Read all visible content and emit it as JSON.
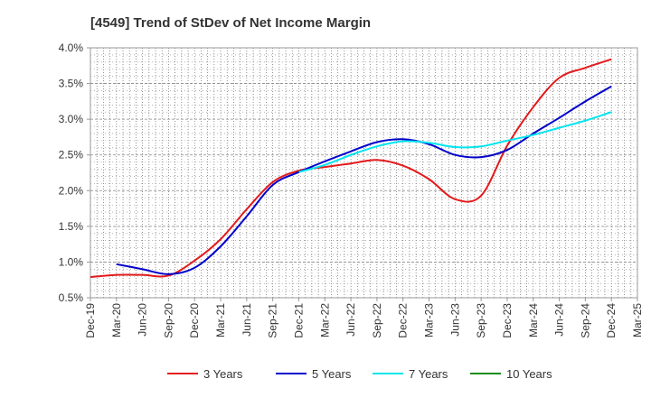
{
  "chart_data": {
    "type": "line",
    "title": "[4549]  Trend of StDev of Net Income Margin",
    "xlabel": "",
    "ylabel": "",
    "ylim": [
      0.5,
      4.0
    ],
    "yticks": [
      "0.5%",
      "1.0%",
      "1.5%",
      "2.0%",
      "2.5%",
      "3.0%",
      "3.5%",
      "4.0%"
    ],
    "ytick_values": [
      0.5,
      1.0,
      1.5,
      2.0,
      2.5,
      3.0,
      3.5,
      4.0
    ],
    "categories": [
      "Dec-19",
      "Mar-20",
      "Jun-20",
      "Sep-20",
      "Dec-20",
      "Mar-21",
      "Jun-21",
      "Sep-21",
      "Dec-21",
      "Mar-22",
      "Jun-22",
      "Sep-22",
      "Dec-22",
      "Mar-23",
      "Jun-23",
      "Sep-23",
      "Dec-23",
      "Mar-24",
      "Jun-24",
      "Sep-24",
      "Dec-24",
      "Mar-25"
    ],
    "grid": true,
    "legend_position": "bottom",
    "series": [
      {
        "name": "3 Years",
        "color": "#e31a1c",
        "values": [
          0.79,
          0.82,
          0.82,
          0.81,
          1.02,
          1.32,
          1.74,
          2.12,
          2.28,
          2.33,
          2.38,
          2.43,
          2.35,
          2.16,
          1.88,
          1.93,
          2.63,
          3.17,
          3.58,
          3.72,
          3.84,
          null
        ]
      },
      {
        "name": "5 Years",
        "color": "#0000cc",
        "values": [
          null,
          0.97,
          0.9,
          0.83,
          0.92,
          1.22,
          1.64,
          2.08,
          2.26,
          2.41,
          2.55,
          2.68,
          2.72,
          2.65,
          2.5,
          2.47,
          2.57,
          2.8,
          3.02,
          3.25,
          3.46,
          null
        ]
      },
      {
        "name": "7 Years",
        "color": "#00e5ee",
        "values": [
          null,
          null,
          null,
          null,
          null,
          null,
          null,
          null,
          2.26,
          2.36,
          2.5,
          2.62,
          2.69,
          2.67,
          2.61,
          2.62,
          2.7,
          2.78,
          2.88,
          2.98,
          3.1,
          null
        ]
      },
      {
        "name": "10 Years",
        "color": "#1a8c1a",
        "values": [
          null,
          null,
          null,
          null,
          null,
          null,
          null,
          null,
          null,
          null,
          null,
          null,
          null,
          null,
          null,
          null,
          null,
          null,
          null,
          null,
          null,
          null
        ]
      }
    ]
  }
}
